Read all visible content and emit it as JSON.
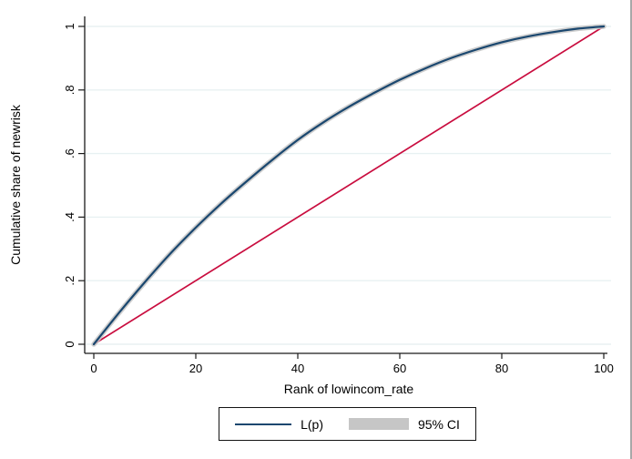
{
  "figure": {
    "background": "#ffffff",
    "right_border_color": "#a8a8a8"
  },
  "chart_data": {
    "type": "line",
    "title": "",
    "xlabel": "Rank of lowincom_rate",
    "ylabel": "Cumulative share of newrisk",
    "xlim": [
      0,
      100
    ],
    "ylim": [
      0,
      1
    ],
    "x_ticks": [
      0,
      20,
      40,
      60,
      80,
      100
    ],
    "x_tick_labels": [
      "0",
      "20",
      "40",
      "60",
      "80",
      "100"
    ],
    "y_ticks": [
      0,
      0.2,
      0.4,
      0.6,
      0.8,
      1
    ],
    "y_tick_labels": [
      "0",
      ".2",
      ".4",
      ".6",
      ".8",
      "1"
    ],
    "grid": "horizontal",
    "grid_color": "#e8f1f2",
    "axis_color": "#1a1a1a",
    "legend_position": "bottom-center",
    "legend": [
      {
        "label": "L(p)",
        "color": "#1a476f",
        "swatch": "line"
      },
      {
        "label": "95% CI",
        "color": "#c6c6c6",
        "swatch": "box"
      }
    ],
    "series": [
      {
        "name": "L(p)",
        "color": "#1a476f",
        "ci_color": "#c6c6c6",
        "x": [
          0,
          5,
          10,
          15,
          20,
          25,
          30,
          35,
          40,
          45,
          50,
          55,
          60,
          65,
          70,
          75,
          80,
          85,
          90,
          95,
          100
        ],
        "y": [
          0,
          0.1,
          0.195,
          0.285,
          0.367,
          0.443,
          0.513,
          0.58,
          0.643,
          0.698,
          0.747,
          0.791,
          0.832,
          0.868,
          0.9,
          0.927,
          0.95,
          0.968,
          0.982,
          0.993,
          1.0
        ]
      },
      {
        "name": "equality-line",
        "color": "#c90d3f",
        "x": [
          0,
          100
        ],
        "y": [
          0,
          1
        ]
      }
    ]
  }
}
